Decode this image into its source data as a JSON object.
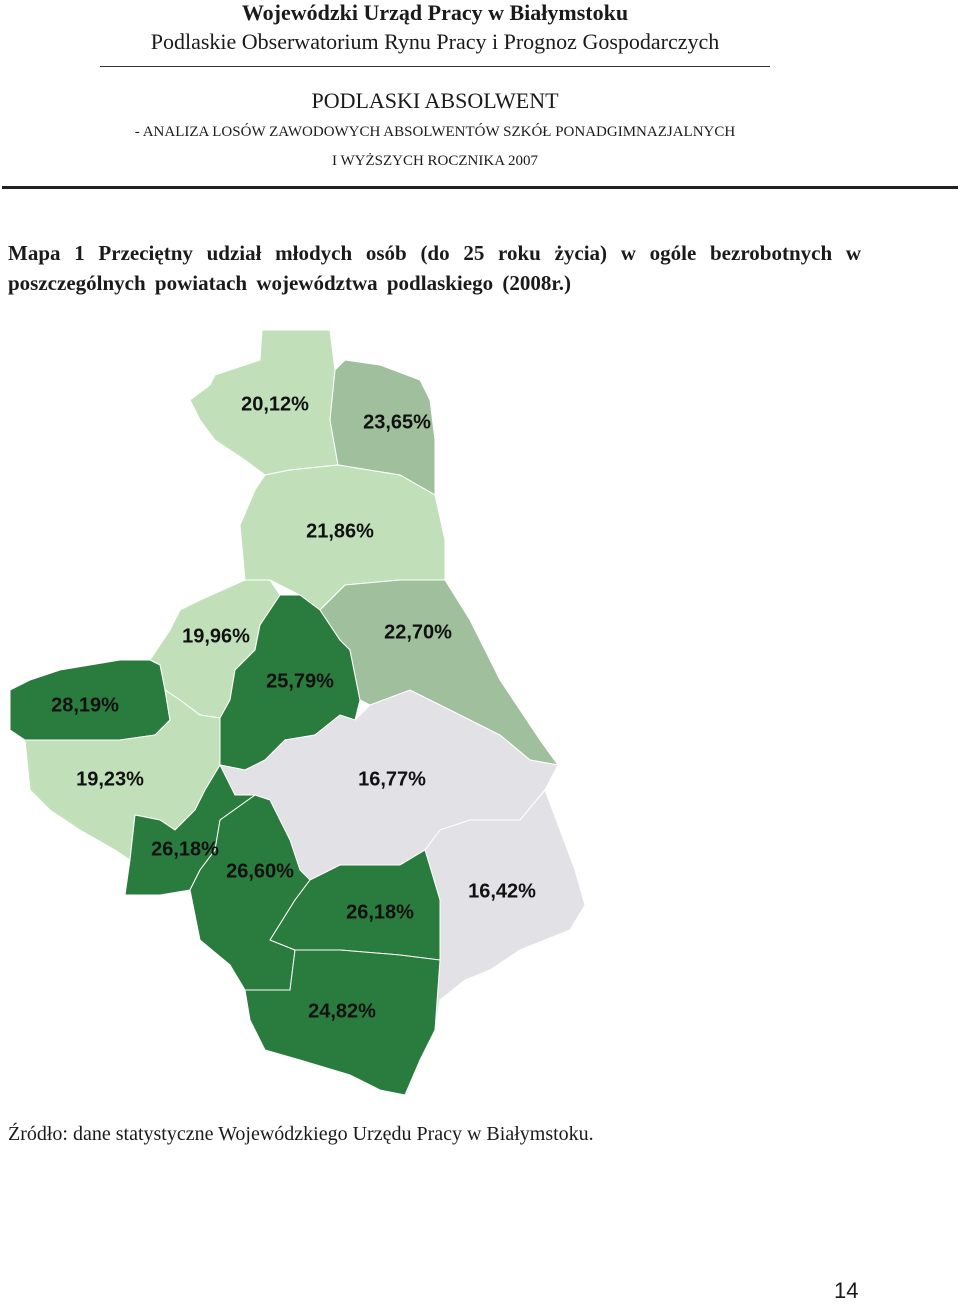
{
  "header": {
    "title": "Wojewódzki Urząd Pracy w Białymstoku",
    "subtitle": "Podlaskie Obserwatorium Rynu Pracy i Prognoz Gospodarczych"
  },
  "report": {
    "title": "PODLASKI ABSOLWENT",
    "line1": "- ANALIZA LOSÓW ZAWODOWYCH ABSOLWENTÓW SZKÓŁ PONADGIMNAZJALNYCH",
    "line2": "I WYŻSZYCH ROCZNIKA 2007"
  },
  "map": {
    "caption": "Mapa 1 Przeciętny udział młodych osób (do 25 roku życia) w ogóle bezrobotnych w poszczególnych powiatach województwa podlaskiego (2008r.)",
    "regions": [
      {
        "label": "20,12%",
        "color": "#c1e0b9"
      },
      {
        "label": "23,65%",
        "color": "#9fbf9d"
      },
      {
        "label": "21,86%",
        "color": "#c1e0b9"
      },
      {
        "label": "19,96%",
        "color": "#c1e0b9"
      },
      {
        "label": "25,79%",
        "color": "#2a7b3e"
      },
      {
        "label": "22,70%",
        "color": "#9fbf9d"
      },
      {
        "label": "28,19%",
        "color": "#2a7b3e"
      },
      {
        "label": "19,23%",
        "color": "#c1e0b9"
      },
      {
        "label": "16,77%",
        "color": "#e2e2e6"
      },
      {
        "label": "16,42%",
        "color": "#e2e2e6"
      },
      {
        "label": "26,18%",
        "color": "#2a7b3e"
      },
      {
        "label": "26,60%",
        "color": "#2a7b3e"
      },
      {
        "label": "26,18%",
        "color": "#2a7b3e"
      },
      {
        "label": "24,82%",
        "color": "#2a7b3e"
      }
    ]
  },
  "source": "Źródło: dane statystyczne Wojewódzkiego Urzędu Pracy w Białymstoku.",
  "page_number": "14"
}
